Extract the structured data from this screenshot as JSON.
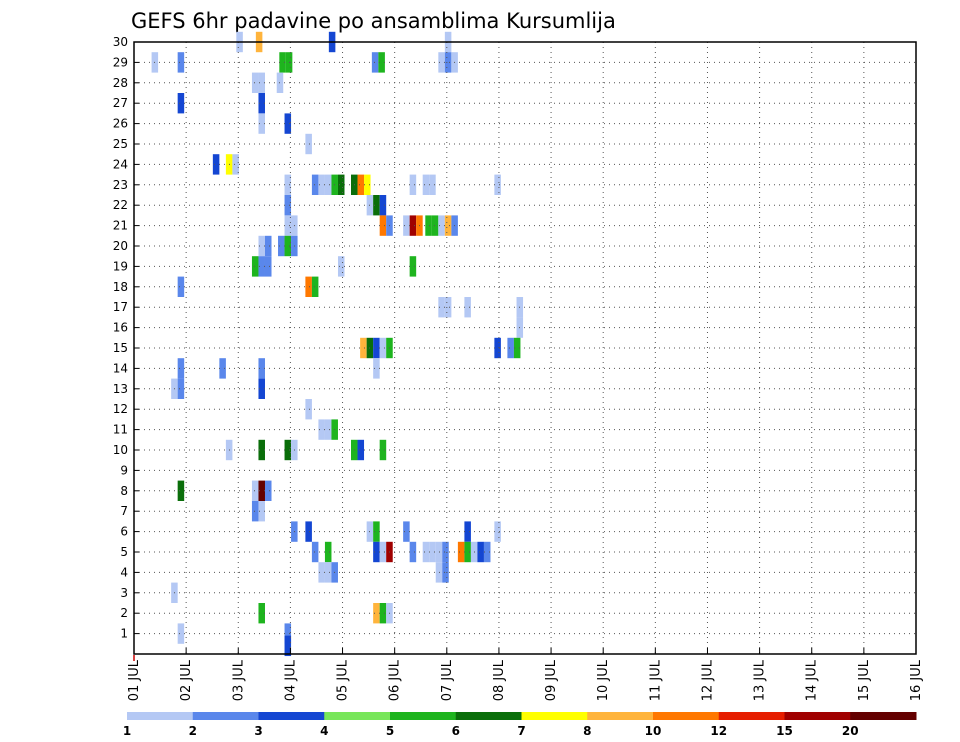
{
  "chart_data": {
    "type": "heatmap",
    "title": "GEFS 6hr padavine po ansamblima Kursumlija",
    "xlabel": "",
    "ylabel": "",
    "x_tick_labels": [
      "01 JUL",
      "02 JUL",
      "03 JUL",
      "04 JUL",
      "05 JUL",
      "06 JUL",
      "07 JUL",
      "08 JUL",
      "09 JUL",
      "10 JUL",
      "11 JUL",
      "12 JUL",
      "13 JUL",
      "14 JUL",
      "15 JUL",
      "16 JUL"
    ],
    "y_tick_labels": [
      "1",
      "2",
      "3",
      "4",
      "5",
      "6",
      "7",
      "8",
      "9",
      "10",
      "11",
      "12",
      "13",
      "14",
      "15",
      "16",
      "17",
      "18",
      "19",
      "20",
      "21",
      "22",
      "23",
      "24",
      "25",
      "26",
      "27",
      "28",
      "29",
      "30"
    ],
    "xlim": [
      0,
      60
    ],
    "ylim": [
      0,
      30
    ],
    "grid": true,
    "legend": {
      "placement": "bottom",
      "levels": [
        "1",
        "2",
        "3",
        "4",
        "5",
        "6",
        "7",
        "8",
        "10",
        "12",
        "15",
        "20"
      ],
      "colors": [
        "#b4c8f4",
        "#5a87eb",
        "#1446d2",
        "#78e65a",
        "#1eb41e",
        "#0a6e0a",
        "#ffff00",
        "#ffb43c",
        "#ff7800",
        "#e61e00",
        "#a00000",
        "#640000"
      ]
    },
    "cells": [
      [
        30,
        8.1,
        1
      ],
      [
        30,
        9.6,
        8
      ],
      [
        30,
        15.2,
        3
      ],
      [
        30,
        24.1,
        1
      ],
      [
        29,
        1.6,
        1
      ],
      [
        29,
        3.6,
        2
      ],
      [
        29,
        11.4,
        5
      ],
      [
        29,
        11.9,
        5
      ],
      [
        29,
        18.5,
        2
      ],
      [
        29,
        19,
        5
      ],
      [
        29,
        23.6,
        1
      ],
      [
        29,
        24.1,
        2
      ],
      [
        29,
        24.6,
        1
      ],
      [
        28,
        9.3,
        1
      ],
      [
        28,
        9.8,
        1
      ],
      [
        28,
        11.2,
        1
      ],
      [
        27,
        3.6,
        3
      ],
      [
        27,
        9.8,
        3
      ],
      [
        26,
        9.8,
        1
      ],
      [
        26,
        11.8,
        3
      ],
      [
        25,
        13.4,
        1
      ],
      [
        24,
        6.3,
        3
      ],
      [
        24,
        7.3,
        7
      ],
      [
        24,
        7.8,
        1
      ],
      [
        23,
        11.8,
        1
      ],
      [
        23,
        13.9,
        2
      ],
      [
        23,
        14.4,
        1
      ],
      [
        23,
        14.9,
        1
      ],
      [
        23,
        15.4,
        5
      ],
      [
        23,
        15.9,
        6
      ],
      [
        23,
        16.9,
        6
      ],
      [
        23,
        17.4,
        10
      ],
      [
        23,
        17.9,
        7
      ],
      [
        23,
        21.4,
        1
      ],
      [
        23,
        22.4,
        1
      ],
      [
        23,
        22.9,
        1
      ],
      [
        23,
        27.9,
        1
      ],
      [
        22,
        11.8,
        2
      ],
      [
        22,
        18.1,
        1
      ],
      [
        22,
        18.6,
        6
      ],
      [
        22,
        19.1,
        3
      ],
      [
        21,
        11.8,
        1
      ],
      [
        21,
        12.3,
        1
      ],
      [
        21,
        19.1,
        10
      ],
      [
        21,
        19.6,
        2
      ],
      [
        21,
        20.9,
        1
      ],
      [
        21,
        21.4,
        15
      ],
      [
        21,
        21.9,
        10
      ],
      [
        21,
        22.6,
        5
      ],
      [
        21,
        23.1,
        5
      ],
      [
        21,
        23.6,
        1
      ],
      [
        21,
        24.1,
        8
      ],
      [
        21,
        24.6,
        2
      ],
      [
        20,
        9.8,
        1
      ],
      [
        20,
        10.3,
        2
      ],
      [
        20,
        11.3,
        2
      ],
      [
        20,
        11.8,
        5
      ],
      [
        20,
        12.3,
        2
      ],
      [
        19,
        9.3,
        5
      ],
      [
        19,
        9.8,
        2
      ],
      [
        19,
        10.3,
        2
      ],
      [
        19,
        15.9,
        1
      ],
      [
        19,
        21.4,
        5
      ],
      [
        18,
        3.6,
        2
      ],
      [
        18,
        13.4,
        10
      ],
      [
        18,
        13.9,
        5
      ],
      [
        17,
        23.6,
        1
      ],
      [
        17,
        24.1,
        1
      ],
      [
        17,
        25.6,
        1
      ],
      [
        17,
        29.6,
        1
      ],
      [
        16,
        29.6,
        1
      ],
      [
        15,
        17.6,
        8
      ],
      [
        15,
        18.1,
        6
      ],
      [
        15,
        18.6,
        3
      ],
      [
        15,
        19.1,
        1
      ],
      [
        15,
        19.6,
        5
      ],
      [
        15,
        27.9,
        3
      ],
      [
        15,
        28.9,
        2
      ],
      [
        15,
        29.4,
        5
      ],
      [
        14,
        3.6,
        2
      ],
      [
        14,
        6.8,
        2
      ],
      [
        14,
        9.8,
        2
      ],
      [
        14,
        18.6,
        1
      ],
      [
        13,
        3.1,
        1
      ],
      [
        13,
        3.6,
        2
      ],
      [
        13,
        9.8,
        3
      ],
      [
        12,
        13.4,
        1
      ],
      [
        11,
        14.4,
        1
      ],
      [
        11,
        14.9,
        1
      ],
      [
        11,
        15.4,
        5
      ],
      [
        10,
        7.3,
        1
      ],
      [
        10,
        9.8,
        6
      ],
      [
        10,
        11.8,
        6
      ],
      [
        10,
        12.3,
        1
      ],
      [
        10,
        16.9,
        5
      ],
      [
        10,
        17.4,
        3
      ],
      [
        10,
        19.1,
        5
      ],
      [
        8,
        3.6,
        6
      ],
      [
        8,
        9.3,
        1
      ],
      [
        8,
        9.8,
        20
      ],
      [
        8,
        10.3,
        2
      ],
      [
        7,
        9.3,
        2
      ],
      [
        7,
        9.8,
        1
      ],
      [
        6,
        12.3,
        2
      ],
      [
        6,
        13.4,
        3
      ],
      [
        6,
        18.1,
        1
      ],
      [
        6,
        18.6,
        5
      ],
      [
        6,
        20.9,
        2
      ],
      [
        6,
        25.6,
        3
      ],
      [
        6,
        27.9,
        1
      ],
      [
        5,
        13.9,
        2
      ],
      [
        5,
        14.9,
        5
      ],
      [
        5,
        18.6,
        3
      ],
      [
        5,
        19.1,
        1
      ],
      [
        5,
        19.6,
        15
      ],
      [
        5,
        21.4,
        2
      ],
      [
        5,
        22.4,
        1
      ],
      [
        5,
        22.9,
        1
      ],
      [
        5,
        23.4,
        1
      ],
      [
        5,
        23.9,
        2
      ],
      [
        5,
        25.1,
        10
      ],
      [
        5,
        25.6,
        5
      ],
      [
        5,
        26.1,
        1
      ],
      [
        5,
        26.6,
        3
      ],
      [
        5,
        27.1,
        2
      ],
      [
        4,
        14.4,
        1
      ],
      [
        4,
        14.9,
        1
      ],
      [
        4,
        15.4,
        2
      ],
      [
        4,
        23.4,
        1
      ],
      [
        4,
        23.9,
        2
      ],
      [
        3,
        3.1,
        1
      ],
      [
        2,
        9.8,
        5
      ],
      [
        2,
        18.6,
        8
      ],
      [
        2,
        19.1,
        5
      ],
      [
        2,
        19.6,
        1
      ],
      [
        1,
        3.6,
        1
      ],
      [
        1,
        11.8,
        2
      ],
      [
        0.4,
        11.8,
        3
      ]
    ]
  }
}
